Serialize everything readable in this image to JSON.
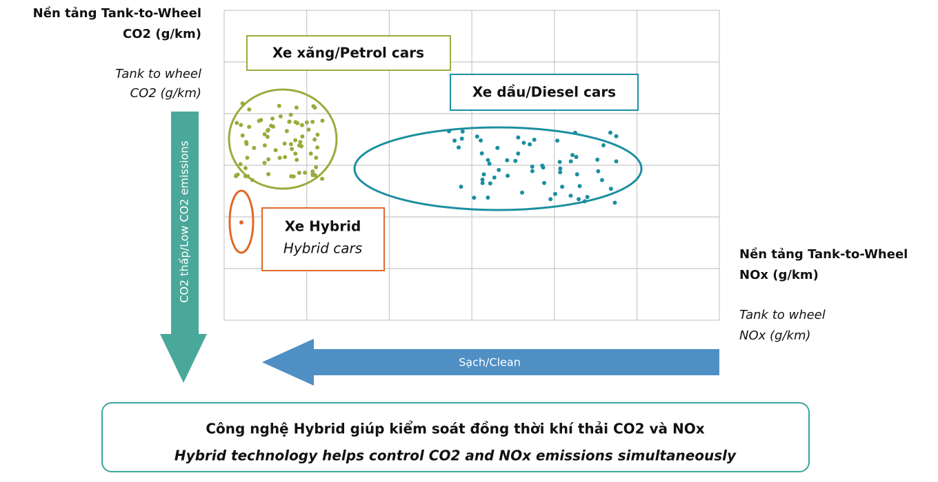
{
  "y_axis": {
    "lines": [
      "Nền tảng Tank-to-Wheel",
      "CO2 (g/km)"
    ],
    "italic_lines": [
      "Tank to wheel",
      "CO2 (g/km)"
    ]
  },
  "x_axis": {
    "lines": [
      "Nền tảng Tank-to-Wheel",
      "NOx (g/km)"
    ],
    "italic_lines": [
      "Tank to wheel",
      "NOx (g/km)"
    ]
  },
  "groups": {
    "petrol": "Xe xăng/Petrol cars",
    "diesel": "Xe dầu/Diesel cars",
    "hybrid": {
      "title": "Xe Hybrid",
      "subtitle": "Hybrid cars"
    }
  },
  "arrows": {
    "down": "CO2 thấp/Low CO2 emissions",
    "left": "Sạch/Clean"
  },
  "footer": {
    "title": "Công nghệ Hybrid giúp kiểm soát đồng thời khí thải CO2 và NOx",
    "subtitle": "Hybrid technology helps control CO2 and NOx emissions simultaneously"
  }
}
